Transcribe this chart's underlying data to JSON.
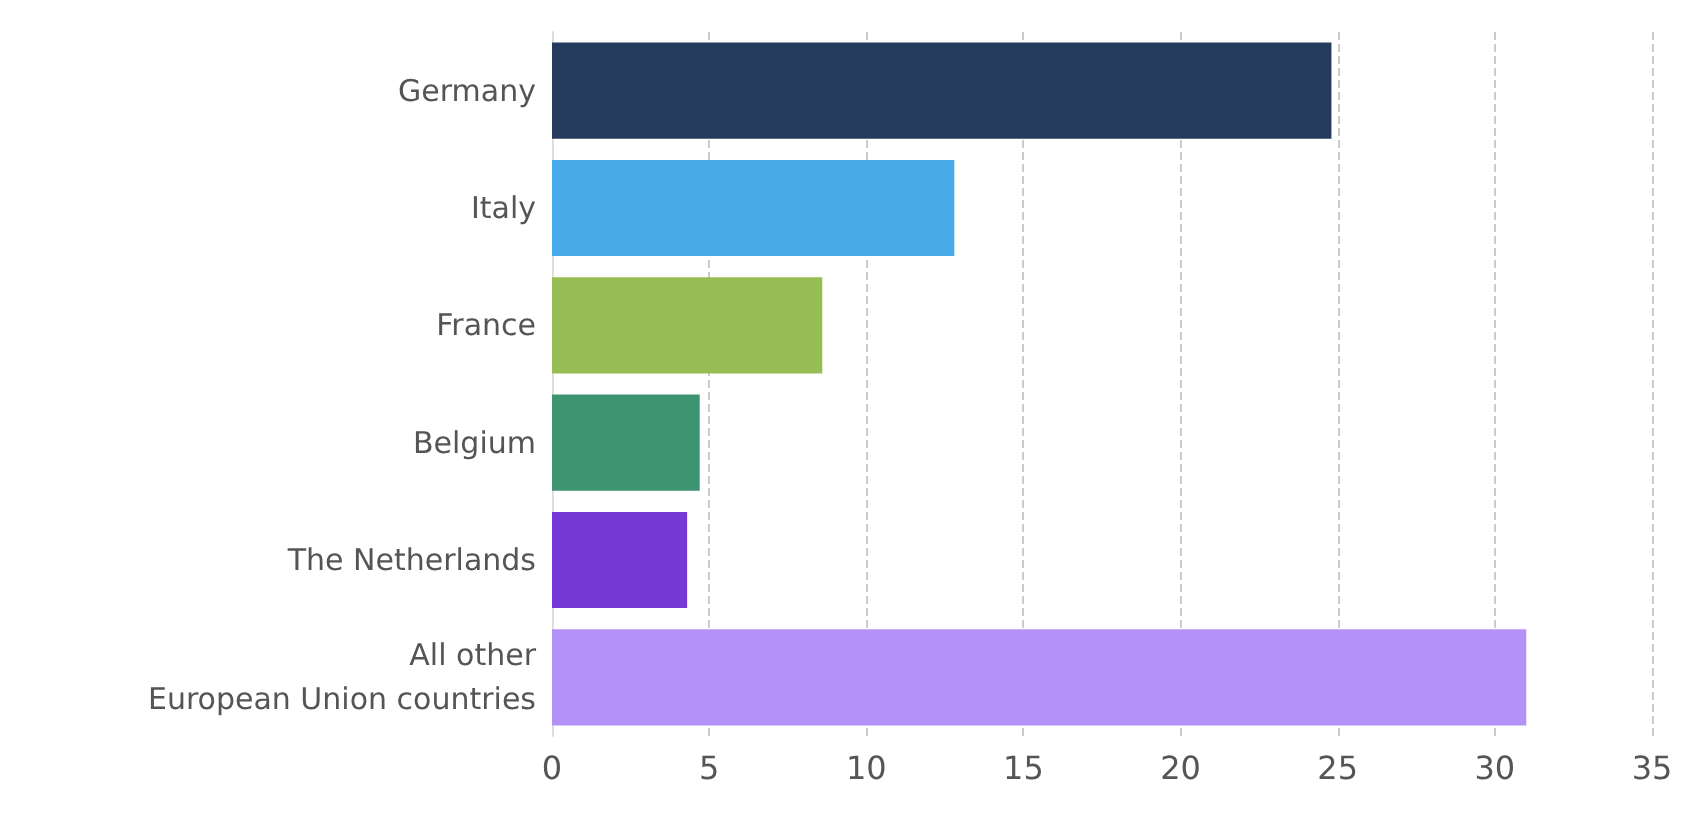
{
  "chart_data": {
    "type": "bar",
    "orientation": "horizontal",
    "categories": [
      "Germany",
      "Italy",
      "France",
      "Belgium",
      "The Netherlands",
      "All other\nEuropean Union countries"
    ],
    "values": [
      24.8,
      12.8,
      8.6,
      4.7,
      4.3,
      31.0
    ],
    "colors": [
      "#243b5e",
      "#46aae8",
      "#96be55",
      "#3d9471",
      "#7638d6",
      "#b392f7"
    ],
    "xlim": [
      0,
      35
    ],
    "xticks": [
      0,
      5,
      10,
      15,
      20,
      25,
      30,
      35
    ],
    "grid": "x"
  }
}
